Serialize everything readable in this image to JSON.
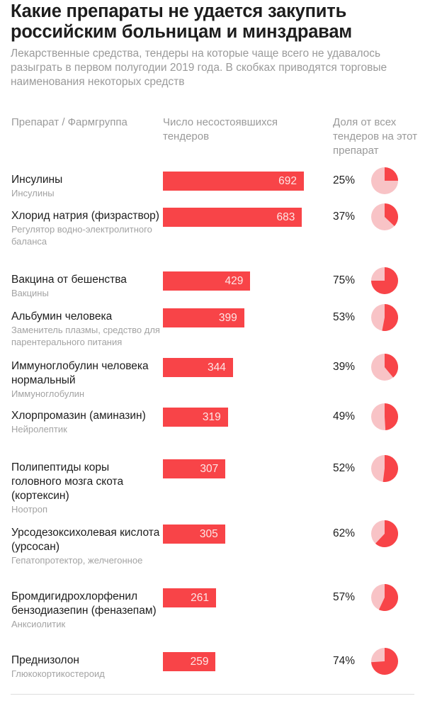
{
  "header": {
    "title": "Какие препараты не удается закупить российским больницам и минздравам",
    "subtitle": "Лекарственные средства, тендеры на которые чаще всего не удавалось разыграть в первом полугодии 2019 года. В скобках приводятся торговые наименования некоторых средств"
  },
  "colors": {
    "bar": "#f84448",
    "pie_share": "#f84448",
    "pie_rest": "#f8c3c6"
  },
  "chart_data": {
    "type": "bar",
    "title": "Какие препараты не удается закупить российским больницам и минздравам",
    "column_headers": {
      "name": "Препарат / Фармгруппа",
      "count": "Число несостоявшихся тендеров",
      "share": "Доля от всех тендеров на этот препарат"
    },
    "categories": [
      "Инсулины",
      "Хлорид натрия (физраствор)",
      "Вакцина от бешенства",
      "Альбумин человека",
      "Иммуноглобулин человека нормальный",
      "Хлорпромазин (аминазин)",
      "Полипептиды коры головного мозга скота (кортексин)",
      "Урсодезоксихолевая кислота (урсосан)",
      "Бромдигидрохлорфенил бензодиазепин (феназепам)",
      "Преднизолон"
    ],
    "series": [
      {
        "name": "Число несостоявшихся тендеров",
        "values": [
          692,
          683,
          429,
          399,
          344,
          319,
          307,
          305,
          261,
          259
        ]
      },
      {
        "name": "Доля от всех тендеров на этот препарат",
        "type": "pie",
        "values": [
          25,
          37,
          75,
          53,
          39,
          49,
          52,
          62,
          57,
          74
        ],
        "unit": "%"
      }
    ],
    "rows": [
      {
        "name": "Инсулины",
        "group": "Инсулины",
        "count": "692",
        "share": "25%",
        "share_value": 25
      },
      {
        "name": "Хлорид натрия (физраствор)",
        "group": "Регулятор водно-электролитного баланса",
        "count": "683",
        "share": "37%",
        "share_value": 37
      },
      {
        "name": "Вакцина от бешенства",
        "group": "Вакцины",
        "count": "429",
        "share": "75%",
        "share_value": 75
      },
      {
        "name": "Альбумин человека",
        "group": "Заменитель плазмы, средство для парентерального питания",
        "count": "399",
        "share": "53%",
        "share_value": 53
      },
      {
        "name": "Иммуноглобулин человека нормальный",
        "group": "Иммуноглобулин",
        "count": "344",
        "share": "39%",
        "share_value": 39
      },
      {
        "name": "Хлорпромазин (аминазин)",
        "group": "Нейролептик",
        "count": "319",
        "share": "49%",
        "share_value": 49
      },
      {
        "name": "Полипептиды коры головного мозга скота (кортексин)",
        "group": "Ноотроп",
        "count": "307",
        "share": "52%",
        "share_value": 52
      },
      {
        "name": "Урсодезоксихолевая кислота (урсосан)",
        "group": "Гепатопротектор, желчегонное",
        "count": "305",
        "share": "62%",
        "share_value": 62
      },
      {
        "name": "Бромдигидрохлорфенил бензодиазепин (феназепам)",
        "group": "Анксиолитик",
        "count": "261",
        "share": "57%",
        "share_value": 57
      },
      {
        "name": "Преднизолон",
        "group": "Глюкокортикостероид",
        "count": "259",
        "share": "74%",
        "share_value": 74
      }
    ],
    "xlabel": "",
    "ylabel": "",
    "xlim": [
      0,
      692
    ]
  }
}
